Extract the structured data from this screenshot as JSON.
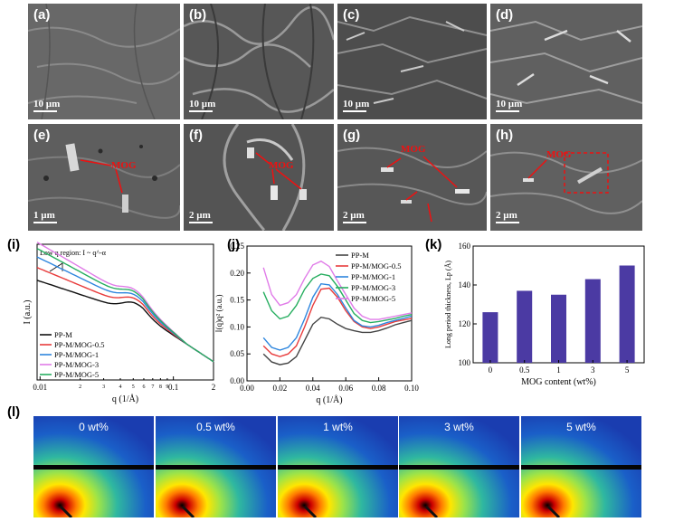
{
  "sem_panels": [
    {
      "label": "(a)",
      "scale": "10 µm"
    },
    {
      "label": "(b)",
      "scale": "10 µm"
    },
    {
      "label": "(c)",
      "scale": "10 µm"
    },
    {
      "label": "(d)",
      "scale": "10 µm"
    },
    {
      "label": "(e)",
      "scale": "1 µm",
      "annotation": "MOG"
    },
    {
      "label": "(f)",
      "scale": "2 µm",
      "annotation": "MOG"
    },
    {
      "label": "(g)",
      "scale": "2 µm",
      "annotation": "MOG"
    },
    {
      "label": "(h)",
      "scale": "2 µm",
      "annotation": "MOG"
    }
  ],
  "chart_data": [
    {
      "panel": "(i)",
      "type": "line",
      "xlabel": "q (1/Å)",
      "ylabel": "I (a.u.)",
      "xscale": "log",
      "yscale": "log",
      "xlim": [
        0.0095,
        0.2
      ],
      "x_tick_labels": [
        "0.01",
        "2",
        "3",
        "4",
        "5",
        "6",
        "7",
        "8",
        "9",
        "0.1",
        "2"
      ],
      "annotation": "Low q region: I ~ q^-α",
      "legend_position": "bottom-left",
      "series": [
        {
          "name": "PP-M",
          "color": "#111111",
          "offset": 0.0
        },
        {
          "name": "PP-M/MOG-0.5",
          "color": "#e83c3c",
          "offset": 0.12
        },
        {
          "name": "PP-M/MOG-1",
          "color": "#2e86de",
          "offset": 0.22
        },
        {
          "name": "PP-M/MOG-3",
          "color": "#e07be8",
          "offset": 0.36
        },
        {
          "name": "PP-M/MOG-5",
          "color": "#27ae60",
          "offset": 0.3
        }
      ]
    },
    {
      "panel": "(j)",
      "type": "line",
      "xlabel": "q (1/Å)",
      "ylabel": "I(q)q² (a.u.)",
      "xlim": [
        0.0,
        0.1
      ],
      "ylim": [
        0.0,
        0.25
      ],
      "x_ticks": [
        "0.00",
        "0.02",
        "0.04",
        "0.06",
        "0.08",
        "0.10"
      ],
      "y_ticks": [
        "0.00",
        "0.05",
        "0.10",
        "0.15",
        "0.20",
        "0.25"
      ],
      "legend_position": "top-right",
      "x": [
        0.01,
        0.015,
        0.02,
        0.025,
        0.03,
        0.035,
        0.04,
        0.045,
        0.05,
        0.055,
        0.06,
        0.065,
        0.07,
        0.075,
        0.08,
        0.085,
        0.09,
        0.095,
        0.1
      ],
      "series": [
        {
          "name": "PP-M",
          "color": "#444444",
          "values": [
            0.05,
            0.035,
            0.03,
            0.033,
            0.045,
            0.075,
            0.105,
            0.118,
            0.115,
            0.105,
            0.097,
            0.093,
            0.09,
            0.09,
            0.093,
            0.098,
            0.104,
            0.108,
            0.112
          ]
        },
        {
          "name": "PP-M/MOG-0.5",
          "color": "#e83c3c",
          "values": [
            0.065,
            0.05,
            0.045,
            0.05,
            0.065,
            0.1,
            0.14,
            0.17,
            0.172,
            0.155,
            0.13,
            0.11,
            0.1,
            0.097,
            0.1,
            0.105,
            0.11,
            0.113,
            0.116
          ]
        },
        {
          "name": "PP-M/MOG-1",
          "color": "#2e86de",
          "values": [
            0.08,
            0.062,
            0.057,
            0.062,
            0.08,
            0.115,
            0.155,
            0.18,
            0.178,
            0.16,
            0.135,
            0.112,
            0.102,
            0.1,
            0.103,
            0.108,
            0.112,
            0.116,
            0.12
          ]
        },
        {
          "name": "PP-M/MOG-3",
          "color": "#27ae60",
          "values": [
            0.165,
            0.13,
            0.115,
            0.12,
            0.14,
            0.17,
            0.19,
            0.198,
            0.195,
            0.175,
            0.15,
            0.125,
            0.112,
            0.108,
            0.11,
            0.113,
            0.116,
            0.12,
            0.123
          ]
        },
        {
          "name": "PP-M/MOG-5",
          "color": "#e07be8",
          "values": [
            0.21,
            0.16,
            0.14,
            0.145,
            0.16,
            0.19,
            0.215,
            0.222,
            0.212,
            0.185,
            0.16,
            0.135,
            0.12,
            0.114,
            0.114,
            0.117,
            0.12,
            0.123,
            0.126
          ]
        }
      ]
    },
    {
      "panel": "(k)",
      "type": "bar",
      "xlabel": "MOG content (wt%)",
      "ylabel": "Long period thickness, Lp (Å)",
      "categories": [
        "0",
        "0.5",
        "1",
        "3",
        "5"
      ],
      "values": [
        126,
        137,
        135,
        143,
        150
      ],
      "ylim": [
        100,
        160
      ],
      "y_ticks": [
        "100",
        "120",
        "140",
        "160"
      ],
      "bar_color": "#4b3aa3"
    }
  ],
  "saxs_panel": {
    "label": "(l)",
    "images": [
      {
        "label": "0 wt%"
      },
      {
        "label": "0.5 wt%"
      },
      {
        "label": "1 wt%"
      },
      {
        "label": "3 wt%"
      },
      {
        "label": "5 wt%"
      }
    ]
  }
}
